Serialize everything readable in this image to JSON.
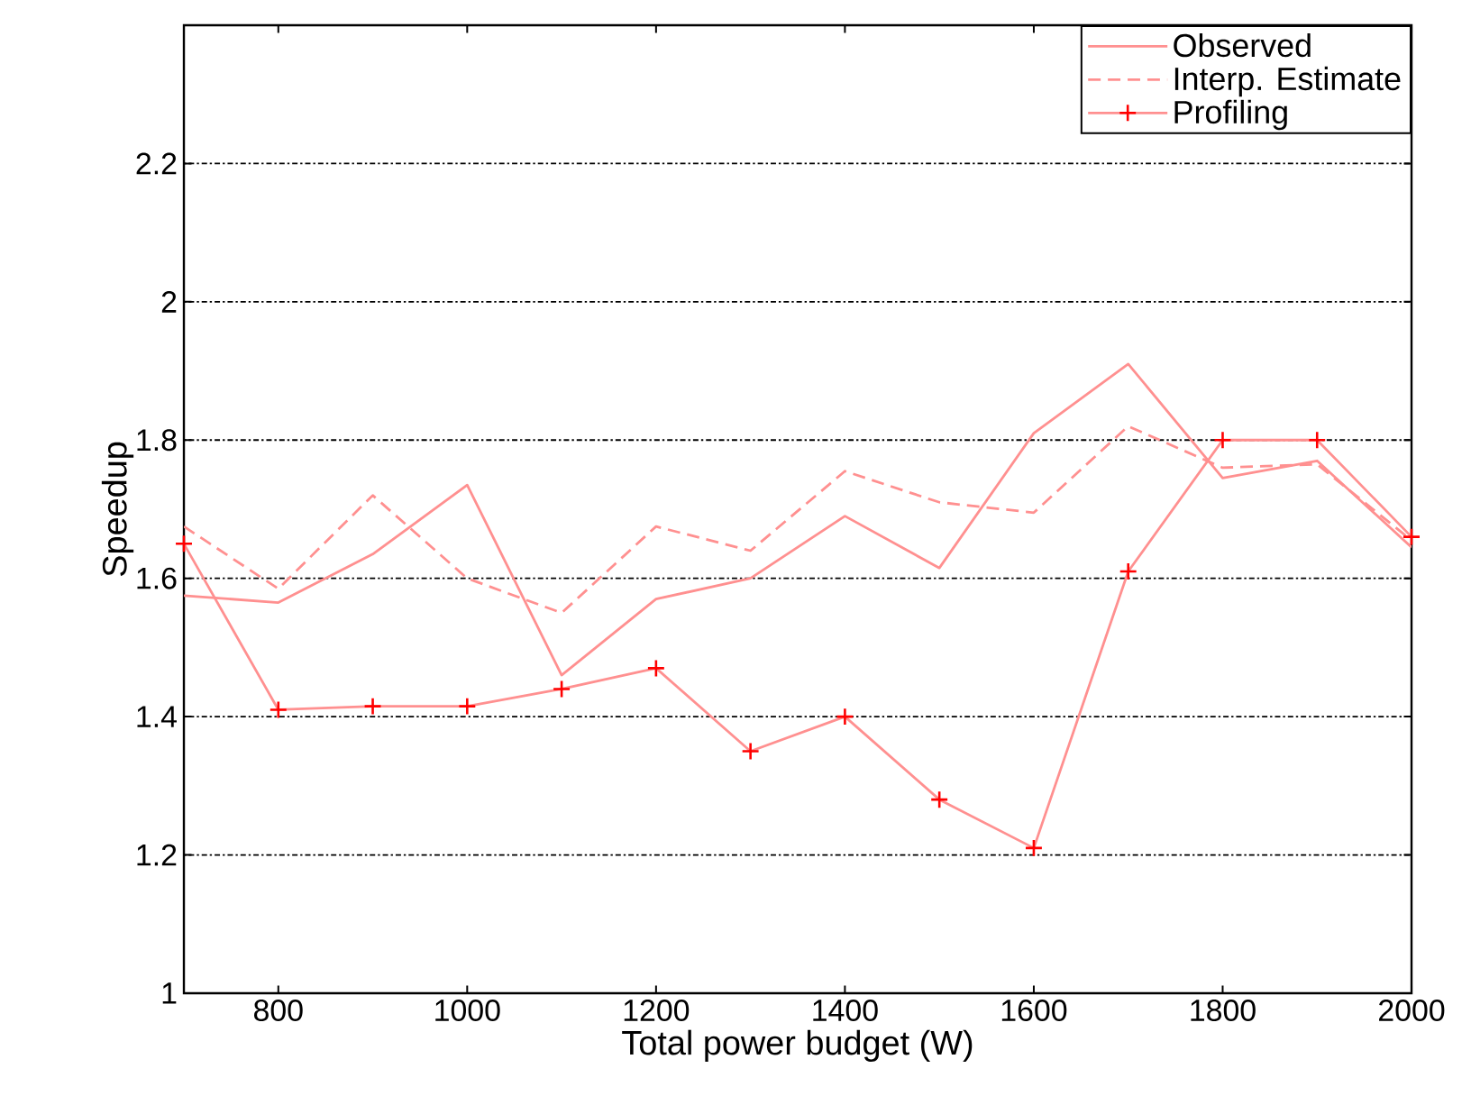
{
  "chart_data": {
    "type": "line",
    "xlabel": "Total power budget (W)",
    "ylabel": "Speedup",
    "x": [
      700,
      800,
      900,
      1000,
      1100,
      1200,
      1300,
      1400,
      1500,
      1600,
      1700,
      1800,
      1900,
      2000
    ],
    "series": [
      {
        "name": "Observed",
        "color": "#ff9090",
        "line_style": "solid",
        "marker": "none",
        "values": [
          1.575,
          1.565,
          1.635,
          1.735,
          1.46,
          1.57,
          1.6,
          1.69,
          1.615,
          1.81,
          1.91,
          1.745,
          1.77,
          1.645
        ]
      },
      {
        "name": "Interp. Estimate",
        "color": "#ff9090",
        "line_style": "dashed",
        "marker": "none",
        "values": [
          1.675,
          1.585,
          1.72,
          1.6,
          1.55,
          1.675,
          1.64,
          1.755,
          1.71,
          1.695,
          1.82,
          1.76,
          1.765,
          1.655
        ]
      },
      {
        "name": "Profiling",
        "color": "#ff9090",
        "line_style": "solid",
        "marker": "cross",
        "values": [
          1.65,
          1.41,
          1.415,
          1.415,
          1.44,
          1.47,
          1.35,
          1.4,
          1.28,
          1.21,
          1.61,
          1.8,
          1.8,
          1.66
        ]
      }
    ],
    "xlim": [
      700,
      2000
    ],
    "ylim": [
      1,
      2.4
    ],
    "xticks": [
      800,
      1000,
      1200,
      1400,
      1600,
      1800,
      2000
    ],
    "yticks": [
      1,
      1.2,
      1.4,
      1.6,
      1.8,
      2,
      2.2
    ],
    "grid": "y",
    "legend": "top right"
  }
}
